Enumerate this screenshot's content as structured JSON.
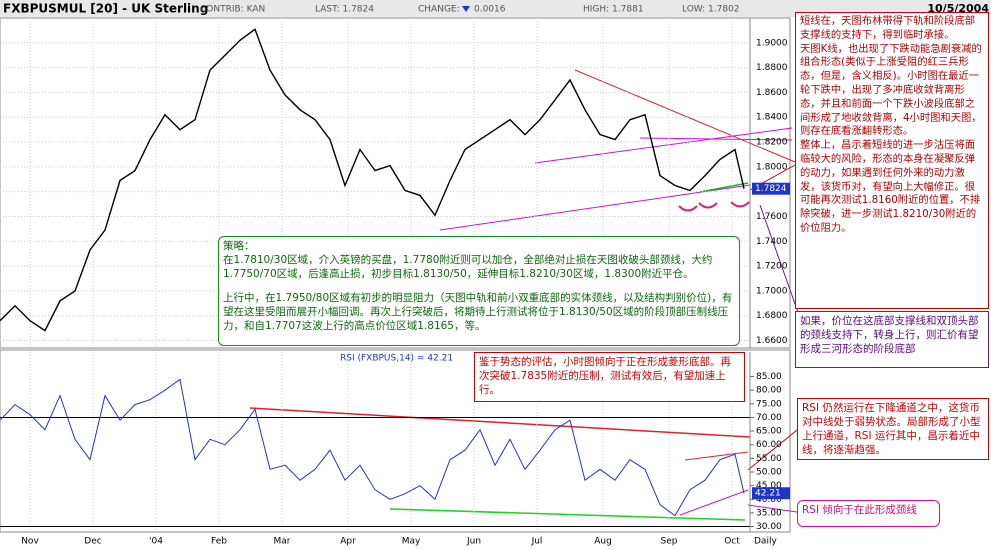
{
  "header": {
    "symbol": "FXBPUSMUL [20] - UK Sterling",
    "contrib": "CONTRIB: KAN",
    "last": "LAST: 1.7824",
    "change_label": "CHANGE:",
    "change": "0.0016",
    "high": "HIGH: 1.7881",
    "low": "LOW: 1.7802",
    "date": "10/5/2004"
  },
  "chart_data": [
    {
      "type": "line",
      "color": "#000000",
      "grid": true,
      "last_label": "1.7824",
      "x": [
        0,
        5,
        10,
        15,
        20,
        25,
        30,
        35,
        40,
        45,
        50,
        55,
        60,
        65,
        70,
        75,
        80,
        85,
        90,
        95,
        100,
        105,
        110,
        115,
        120,
        125,
        130,
        135,
        140,
        145,
        150,
        155,
        160,
        165,
        170,
        175,
        180,
        185,
        190,
        195,
        200,
        205,
        210,
        215,
        220,
        225,
        230,
        235,
        240,
        245,
        248
      ],
      "xlim": [
        0,
        250
      ],
      "series": [
        {
          "color": "#000000",
          "values": [
            1.676,
            1.688,
            1.676,
            1.668,
            1.692,
            1.7,
            1.733,
            1.749,
            1.789,
            1.797,
            1.822,
            1.842,
            1.83,
            1.838,
            1.878,
            1.89,
            1.902,
            1.911,
            1.878,
            1.858,
            1.846,
            1.838,
            1.822,
            1.785,
            1.814,
            1.797,
            1.801,
            1.781,
            1.777,
            1.761,
            1.789,
            1.814,
            1.822,
            1.83,
            1.838,
            1.826,
            1.838,
            1.854,
            1.87,
            1.846,
            1.826,
            1.822,
            1.838,
            1.842,
            1.793,
            1.785,
            1.781,
            1.793,
            1.806,
            1.814,
            1.7824
          ]
        }
      ],
      "ylim": [
        1.654,
        1.92
      ],
      "yticks": [
        {
          "value": 1.9,
          "label": "1.9000"
        },
        {
          "value": 1.88,
          "label": "1.8800"
        },
        {
          "value": 1.86,
          "label": "1.8600"
        },
        {
          "value": 1.84,
          "label": "1.8400"
        },
        {
          "value": 1.82,
          "label": "1.8200"
        },
        {
          "value": 1.8,
          "label": "1.8000"
        },
        {
          "value": 1.78,
          "label": "1.7800"
        },
        {
          "value": 1.76,
          "label": "1.7600"
        },
        {
          "value": 1.74,
          "label": "1.7400"
        },
        {
          "value": 1.72,
          "label": "1.7200"
        },
        {
          "value": 1.7,
          "label": "1.7000"
        },
        {
          "value": 1.68,
          "label": "1.6800"
        },
        {
          "value": 1.66,
          "label": "1.6600"
        }
      ]
    },
    {
      "type": "line",
      "title": "RSI (FXBPUS,14) = 42.21",
      "color": "#1f35c8",
      "last_label": "42.21",
      "x_unit_label": "Daily",
      "x": [
        0,
        5,
        10,
        15,
        20,
        25,
        30,
        35,
        40,
        45,
        50,
        55,
        60,
        65,
        70,
        75,
        80,
        85,
        90,
        95,
        100,
        105,
        110,
        115,
        120,
        125,
        130,
        135,
        140,
        145,
        150,
        155,
        160,
        165,
        170,
        175,
        180,
        185,
        190,
        195,
        200,
        205,
        210,
        215,
        220,
        225,
        230,
        235,
        240,
        245,
        248
      ],
      "xlim": [
        0,
        250
      ],
      "xticks": [
        {
          "value": 10,
          "label": "Nov"
        },
        {
          "value": 31,
          "label": "Dec"
        },
        {
          "value": 52,
          "label": "'04"
        },
        {
          "value": 73,
          "label": "Feb"
        },
        {
          "value": 94,
          "label": "Mar"
        },
        {
          "value": 116,
          "label": "Apr"
        },
        {
          "value": 137,
          "label": "May"
        },
        {
          "value": 158,
          "label": "Jun"
        },
        {
          "value": 179,
          "label": "Jul"
        },
        {
          "value": 201,
          "label": "Aug"
        },
        {
          "value": 223,
          "label": "Sep"
        },
        {
          "value": 244,
          "label": "Oct"
        }
      ],
      "series": [
        {
          "color": "#1f35c8",
          "values": [
            69,
            74.7,
            71,
            65.5,
            78,
            62,
            54.5,
            78,
            69,
            74.7,
            76.5,
            80,
            84,
            54.5,
            62,
            60,
            65.5,
            73,
            51,
            52.5,
            47,
            51,
            58,
            47,
            52.5,
            43.5,
            40,
            42,
            45,
            40,
            54.5,
            58,
            65.5,
            52.5,
            62,
            51,
            58,
            65.5,
            69,
            47,
            51,
            47,
            54.5,
            51,
            38,
            34,
            43.5,
            47,
            54.5,
            56.5,
            42.21
          ]
        }
      ],
      "ylim": [
        28,
        94
      ],
      "hlines": [
        70,
        30
      ],
      "yticks": [
        {
          "value": 85,
          "label": "85.00"
        },
        {
          "value": 80,
          "label": "80.00"
        },
        {
          "value": 75,
          "label": "75.00"
        },
        {
          "value": 70,
          "label": "70.00"
        },
        {
          "value": 65,
          "label": "65.00"
        },
        {
          "value": 60,
          "label": "60.00"
        },
        {
          "value": 55,
          "label": "55.00"
        },
        {
          "value": 50,
          "label": "50.00"
        },
        {
          "value": 45,
          "label": "45.00"
        },
        {
          "value": 40,
          "label": "40.00"
        },
        {
          "value": 35,
          "label": "35.00"
        },
        {
          "value": 30,
          "label": "30.00"
        }
      ]
    }
  ],
  "annotations": [
    {
      "lines": [
        "短线在，天图布林带得下轨和阶段底部支撑线的支持下，得到临时承接。",
        "天图K线，也出现了下跌动能急剧衰减的组合形态(类似于上涨受阻的红三兵形态，但是，含义相反)。小时图在最近一轮下跌中，出现了多冲底收敛背离形态，并且和前面一个下跌小波段底部之间形成了地收敛背离，4小时图和天图，则存在底看涨翻转形态。",
        "整体上，昌示着短线的进一步沽压将面临较大的风险，形态的本身在凝聚反弹的动力，如果遇到任何外来的动力激发，该货币对，有望向上大幅修正。很可能再次测试1.8160附近的位置，不排除突破，进一步测试1.8210/30附近的价位阻力。"
      ]
    },
    {
      "lines": [
        "如果，价位在这底部支撑线和双顶头部的颈线支持下，转身上行，则汇价有望形成三河形态的阶段底部"
      ]
    },
    {
      "lines": [
        "策略：",
        "在1.7810/30区域，介入英镑的买盘，1.7780附近则可以加仓，全部绝对止损在天图收破头部颈线，大约1.7750/70区域，后逢高止损，初步目标1.8130/50，延伸目标1.8210/30区域，1.8300附近平仓。",
        "上行中，在1.7950/80区域有初步的明显阻力（天图中轨和前小双重底部的实体颈线，以及结构判别价位)，有望在这里受阻而展开小幅回调。再次上行突破后，将期待上行测试将位于1.8130/50区域的阶段顶部压制线压力，和自1.7707这波上行的高点价位区域1.8165，等。"
      ]
    },
    {
      "lines": [
        "鉴于势态的评估，小时图倾向于正在形成菱形底部。再次突破1.7835附近的压制，测试有效后，有望加速上行。"
      ]
    },
    {
      "lines": [
        "RSI 仍然运行在下降通道之中，这货币对中线处于弱势状态。局部形成了小型上行通道，RSI 运行其中，昌示着近中线，将逐渐趋强。"
      ]
    },
    {
      "lines": [
        "RSI 倾向于在此形成颈线"
      ]
    }
  ]
}
